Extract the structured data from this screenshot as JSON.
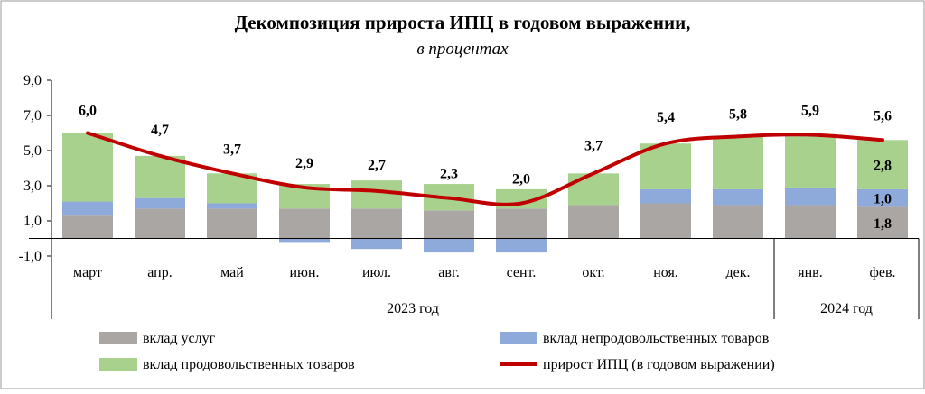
{
  "chart_data": {
    "type": "bar",
    "title": "Декомпозиция прироста ИПЦ  в годовом выражении,",
    "subtitle": "в процентах",
    "categories": [
      "март",
      "апр.",
      "май",
      "июн.",
      "июл.",
      "авг.",
      "сент.",
      "окт.",
      "ноя.",
      "дек.",
      "янв.",
      "фев."
    ],
    "groups": [
      {
        "label": "2023 год",
        "from": 0,
        "to": 9
      },
      {
        "label": "2024 год",
        "from": 10,
        "to": 11
      }
    ],
    "yticks": [
      "9,0",
      "7,0",
      "5,0",
      "3,0",
      "1,0",
      "-1,0"
    ],
    "ylim": [
      -1.0,
      9.0
    ],
    "grid": false,
    "series": [
      {
        "name": "вклад услуг",
        "kind": "bar",
        "color": "#aaa6a4",
        "values": [
          1.3,
          1.7,
          1.7,
          1.7,
          1.7,
          1.6,
          1.7,
          1.9,
          2.0,
          1.9,
          1.9,
          1.8
        ]
      },
      {
        "name": "вклад непродовольственных товаров",
        "kind": "bar",
        "color": "#8eaadb",
        "values": [
          0.8,
          0.6,
          0.3,
          -0.2,
          -0.6,
          -0.8,
          -0.8,
          0.0,
          0.8,
          0.9,
          1.0,
          1.0
        ]
      },
      {
        "name": "вклад продовольственных товаров",
        "kind": "bar",
        "color": "#a9d18e",
        "values": [
          3.9,
          2.4,
          1.7,
          1.4,
          1.6,
          1.5,
          1.1,
          1.8,
          2.6,
          3.0,
          3.0,
          2.8
        ]
      },
      {
        "name": "прирост ИПЦ (в годовом выражении)",
        "kind": "line",
        "color": "#c00000",
        "values": [
          6.0,
          4.7,
          3.7,
          2.9,
          2.7,
          2.3,
          2.0,
          3.7,
          5.4,
          5.8,
          5.9,
          5.6
        ]
      }
    ],
    "line_labels": [
      "6,0",
      "4,7",
      "3,7",
      "2,9",
      "2,7",
      "2,3",
      "2,0",
      "3,7",
      "5,4",
      "5,8",
      "5,9",
      "5,6"
    ],
    "bar_labels": {
      "category": "фев.",
      "services": "1,8",
      "nonfood": "1,0",
      "food": "2,8"
    },
    "legend_position": "bottom"
  }
}
